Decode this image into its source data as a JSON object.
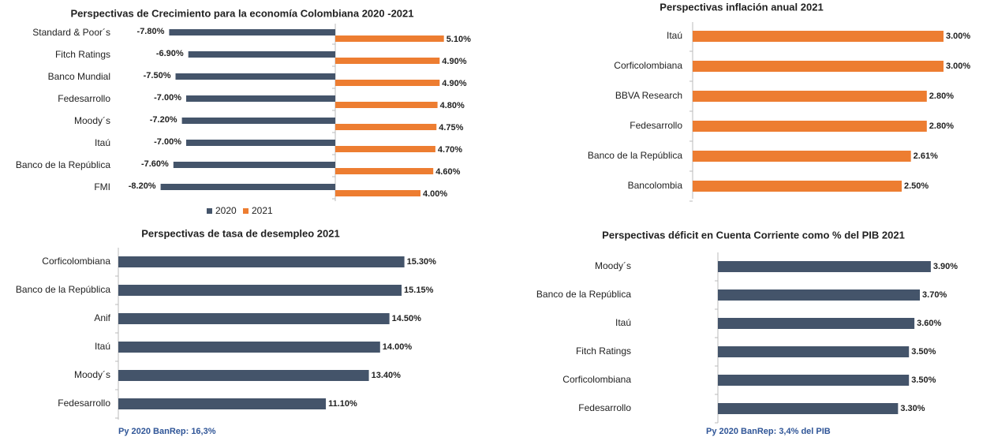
{
  "chart_data": [
    {
      "type": "bar",
      "title": "Perspectivas de Crecimiento para la economía Colombiana 2020 -2021",
      "categories": [
        "Standard & Poor´s",
        "Fitch Ratings",
        "Banco Mundial",
        "Fedesarrollo",
        "Moody´s",
        "Itaú",
        "Banco de la República",
        "FMI"
      ],
      "series": [
        {
          "name": "2020",
          "color": "#44546a",
          "values": [
            -7.8,
            -6.9,
            -7.5,
            -7.0,
            -7.2,
            -7.0,
            -7.6,
            -8.2
          ],
          "value_labels": [
            "-7.80%",
            "-6.90%",
            "-7.50%",
            "-7.00%",
            "-7.20%",
            "-7.00%",
            "-7.60%",
            "-8.20%"
          ]
        },
        {
          "name": "2021",
          "color": "#ed7d31",
          "values": [
            5.1,
            4.9,
            4.9,
            4.8,
            4.75,
            4.7,
            4.6,
            4.0
          ],
          "value_labels": [
            "5.10%",
            "4.90%",
            "4.90%",
            "4.80%",
            "4.75%",
            "4.70%",
            "4.60%",
            "4.00%"
          ]
        }
      ],
      "legend": "bottom"
    },
    {
      "type": "bar",
      "title": "Perspectivas inflación anual 2021",
      "categories": [
        "Itaú",
        "Corficolombiana",
        "BBVA Research",
        "Fedesarrollo",
        "Banco de la República",
        "Bancolombia"
      ],
      "values": [
        3.0,
        3.0,
        2.8,
        2.8,
        2.61,
        2.5
      ],
      "value_labels": [
        "3.00%",
        "3.00%",
        "2.80%",
        "2.80%",
        "2.61%",
        "2.50%"
      ],
      "color": "#ed7d31"
    },
    {
      "type": "bar",
      "title": "Perspectivas de tasa de desempleo 2021",
      "categories": [
        "Corficolombiana",
        "Banco de la República",
        "Anif",
        "Itaú",
        "Moody´s",
        "Fedesarrollo"
      ],
      "values": [
        15.3,
        15.15,
        14.5,
        14.0,
        13.4,
        11.1
      ],
      "value_labels": [
        "15.30%",
        "15.15%",
        "14.50%",
        "14.00%",
        "13.40%",
        "11.10%"
      ],
      "color": "#44546a",
      "note": "Py 2020 BanRep: 16,3%"
    },
    {
      "type": "bar",
      "title": "Perspectivas déficit en Cuenta Corriente como % del PIB 2021",
      "categories": [
        "Moody´s",
        "Banco de la República",
        "Itaú",
        "Fitch Ratings",
        "Corficolombiana",
        "Fedesarrollo"
      ],
      "values": [
        3.9,
        3.7,
        3.6,
        3.5,
        3.5,
        3.3
      ],
      "value_labels": [
        "3.90%",
        "3.70%",
        "3.60%",
        "3.50%",
        "3.50%",
        "3.30%"
      ],
      "color": "#44546a",
      "note": "Py 2020 BanRep: 3,4% del PIB"
    }
  ]
}
